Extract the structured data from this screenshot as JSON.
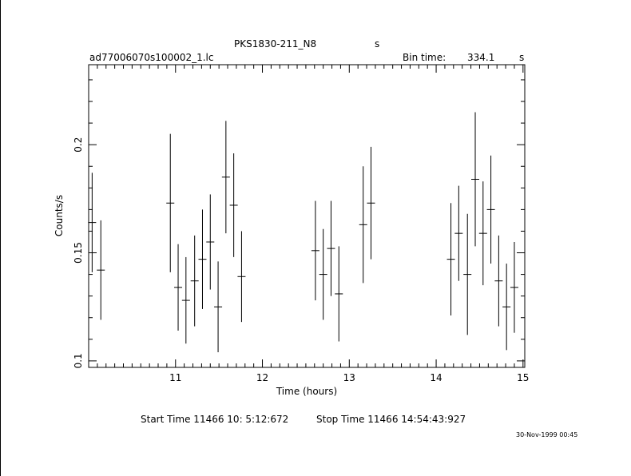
{
  "header": {
    "object": "PKS1830-211_N8",
    "object_unit": "s",
    "file": "ad77006070s100002_1.lc",
    "bin_label": "Bin time:",
    "bin_value": "334.1",
    "bin_unit": "s"
  },
  "footer": {
    "start_time": "Start Time 11466 10: 5:12:672",
    "stop_time": "Stop Time 11466 14:54:43:927",
    "date_stamp": "30-Nov-1999 00:45"
  },
  "chart_data": {
    "type": "scatter",
    "title": "PKS1830-211_N8",
    "xlabel": "Time (hours)",
    "ylabel": "Counts/s",
    "xlim": [
      10.0,
      15.02
    ],
    "ylim": [
      0.097,
      0.237
    ],
    "x_ticks": [
      11,
      12,
      13,
      14,
      15
    ],
    "y_ticks": [
      0.1,
      0.15,
      0.2
    ],
    "grid": false,
    "points": [
      {
        "x": 10.04,
        "y": 0.164,
        "xerr": 0.046,
        "yerr": 0.023
      },
      {
        "x": 10.14,
        "y": 0.142,
        "xerr": 0.046,
        "yerr": 0.023
      },
      {
        "x": 10.94,
        "y": 0.173,
        "xerr": 0.046,
        "yerr": 0.032
      },
      {
        "x": 11.03,
        "y": 0.134,
        "xerr": 0.046,
        "yerr": 0.02
      },
      {
        "x": 11.12,
        "y": 0.128,
        "xerr": 0.046,
        "yerr": 0.02
      },
      {
        "x": 11.22,
        "y": 0.137,
        "xerr": 0.046,
        "yerr": 0.021
      },
      {
        "x": 11.31,
        "y": 0.147,
        "xerr": 0.046,
        "yerr": 0.023
      },
      {
        "x": 11.4,
        "y": 0.155,
        "xerr": 0.046,
        "yerr": 0.022
      },
      {
        "x": 11.49,
        "y": 0.125,
        "xerr": 0.046,
        "yerr": 0.021
      },
      {
        "x": 11.58,
        "y": 0.185,
        "xerr": 0.046,
        "yerr": 0.026
      },
      {
        "x": 11.67,
        "y": 0.172,
        "xerr": 0.046,
        "yerr": 0.024
      },
      {
        "x": 11.76,
        "y": 0.139,
        "xerr": 0.046,
        "yerr": 0.021
      },
      {
        "x": 12.61,
        "y": 0.151,
        "xerr": 0.046,
        "yerr": 0.023
      },
      {
        "x": 12.7,
        "y": 0.14,
        "xerr": 0.046,
        "yerr": 0.021
      },
      {
        "x": 12.79,
        "y": 0.152,
        "xerr": 0.046,
        "yerr": 0.022
      },
      {
        "x": 12.88,
        "y": 0.131,
        "xerr": 0.046,
        "yerr": 0.022
      },
      {
        "x": 13.16,
        "y": 0.163,
        "xerr": 0.046,
        "yerr": 0.027
      },
      {
        "x": 13.25,
        "y": 0.173,
        "xerr": 0.046,
        "yerr": 0.026
      },
      {
        "x": 14.17,
        "y": 0.147,
        "xerr": 0.046,
        "yerr": 0.026
      },
      {
        "x": 14.26,
        "y": 0.159,
        "xerr": 0.046,
        "yerr": 0.022
      },
      {
        "x": 14.36,
        "y": 0.14,
        "xerr": 0.046,
        "yerr": 0.028
      },
      {
        "x": 14.45,
        "y": 0.184,
        "xerr": 0.046,
        "yerr": 0.031
      },
      {
        "x": 14.54,
        "y": 0.159,
        "xerr": 0.046,
        "yerr": 0.024
      },
      {
        "x": 14.63,
        "y": 0.17,
        "xerr": 0.046,
        "yerr": 0.025
      },
      {
        "x": 14.72,
        "y": 0.137,
        "xerr": 0.046,
        "yerr": 0.021
      },
      {
        "x": 14.81,
        "y": 0.125,
        "xerr": 0.046,
        "yerr": 0.02
      },
      {
        "x": 14.9,
        "y": 0.134,
        "xerr": 0.046,
        "yerr": 0.021
      }
    ]
  }
}
